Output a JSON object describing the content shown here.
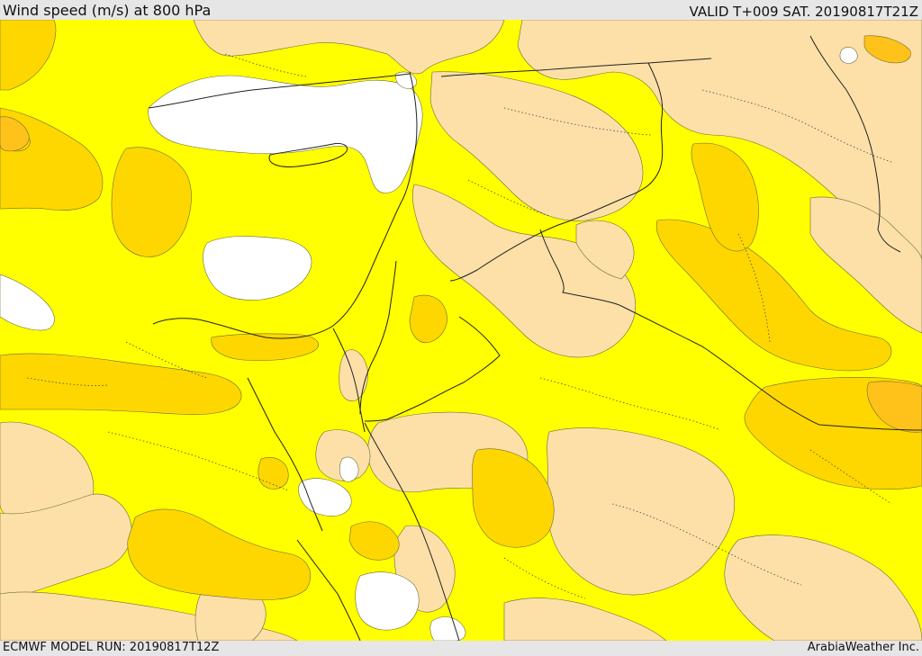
{
  "header": {
    "title": "Wind speed (m/s) at 800 hPa",
    "valid": "VALID T+009 SAT. 20190817T21Z"
  },
  "footer": {
    "model_run": "ECMWF MODEL RUN: 20190817T12Z",
    "credit": "ArabiaWeather Inc."
  },
  "map": {
    "parameter": "wind speed",
    "units": "m/s",
    "level": "800 hPa",
    "colors": {
      "calm_white": "#ffffff",
      "light_tan": "#fde0a8",
      "yellow": "#ffff00",
      "gold": "#ffd700",
      "orange_gold": "#ffc21a",
      "contour": "#6b6b3a",
      "border": "#222222"
    }
  }
}
